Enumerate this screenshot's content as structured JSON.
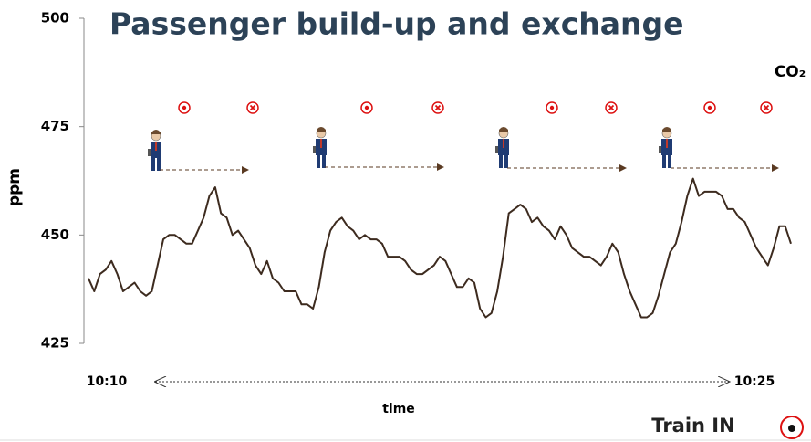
{
  "chart_data": {
    "type": "line",
    "title": "Passenger build-up and exchange",
    "y_label": "ppm",
    "x_label": "time",
    "series_label": "CO₂",
    "x_start_label": "10:10",
    "x_end_label": "10:25",
    "button_label": "Train IN",
    "color": "#3d2b1f",
    "ylim": [
      425,
      500
    ],
    "yticks": [
      425,
      450,
      475,
      500
    ],
    "values": [
      440,
      437,
      441,
      442,
      444,
      441,
      437,
      438,
      439,
      437,
      436,
      437,
      443,
      449,
      450,
      450,
      449,
      448,
      448,
      451,
      454,
      459,
      461,
      455,
      454,
      450,
      451,
      449,
      447,
      443,
      441,
      444,
      440,
      439,
      437,
      437,
      437,
      434,
      434,
      433,
      438,
      446,
      451,
      453,
      454,
      452,
      451,
      449,
      450,
      449,
      449,
      448,
      445,
      445,
      445,
      444,
      442,
      441,
      441,
      442,
      443,
      445,
      444,
      441,
      438,
      438,
      440,
      439,
      433,
      431,
      432,
      437,
      445,
      455,
      456,
      457,
      456,
      453,
      454,
      452,
      451,
      449,
      452,
      450,
      447,
      446,
      445,
      445,
      444,
      443,
      445,
      448,
      446,
      441,
      437,
      434,
      431,
      431,
      432,
      436,
      441,
      446,
      448,
      453,
      459,
      463,
      459,
      460,
      460,
      460,
      459,
      456,
      456,
      454,
      453,
      450,
      447,
      445,
      443,
      447,
      452,
      452,
      448
    ]
  }
}
